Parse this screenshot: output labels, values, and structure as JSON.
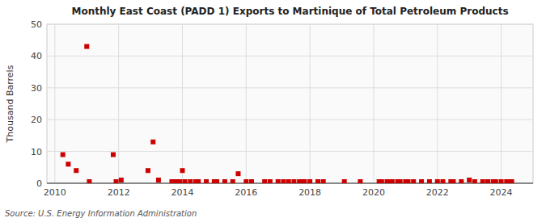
{
  "chart_data": {
    "type": "scatter",
    "title": "Monthly East Coast (PADD 1) Exports to Martinique of Total Petroleum Products",
    "ylabel": "Thousand Barrels",
    "annotations": [
      "Source: U.S. Energy Information Administration"
    ],
    "color": "#cc0000",
    "marker": "square",
    "grid": true,
    "xlim": [
      2009.75,
      2025.0
    ],
    "ylim": [
      0,
      50
    ],
    "xticks": [
      2010,
      2012,
      2014,
      2016,
      2018,
      2020,
      2022,
      2024
    ],
    "yticks": [
      0,
      10,
      20,
      30,
      40,
      50
    ],
    "x": [
      2010.25,
      2010.42,
      2010.67,
      2011.0,
      2011.08,
      2011.83,
      2011.92,
      2012.08,
      2012.92,
      2013.08,
      2013.25,
      2013.67,
      2013.75,
      2013.83,
      2013.92,
      2014.0,
      2014.08,
      2014.25,
      2014.42,
      2014.5,
      2014.75,
      2015.0,
      2015.08,
      2015.33,
      2015.58,
      2015.75,
      2016.0,
      2016.17,
      2016.58,
      2016.75,
      2017.0,
      2017.17,
      2017.33,
      2017.5,
      2017.67,
      2017.75,
      2017.83,
      2018.0,
      2018.25,
      2018.42,
      2019.08,
      2019.58,
      2020.17,
      2020.25,
      2020.42,
      2020.5,
      2020.58,
      2020.75,
      2020.83,
      2021.0,
      2021.08,
      2021.25,
      2021.5,
      2021.75,
      2022.0,
      2022.17,
      2022.42,
      2022.5,
      2022.75,
      2023.0,
      2023.17,
      2023.42,
      2023.58,
      2023.75,
      2023.83,
      2024.0,
      2024.17,
      2024.25,
      2024.33
    ],
    "values": [
      9.0,
      6.0,
      4.0,
      43.0,
      0.5,
      9.0,
      0.5,
      1.0,
      4.0,
      13.0,
      1.0,
      0.5,
      0.5,
      0.5,
      0.5,
      4.0,
      0.5,
      0.5,
      0.5,
      0.5,
      0.5,
      0.5,
      0.5,
      0.5,
      0.5,
      3.0,
      0.5,
      0.5,
      0.5,
      0.5,
      0.5,
      0.5,
      0.5,
      0.5,
      0.5,
      0.5,
      0.5,
      0.5,
      0.5,
      0.5,
      0.5,
      0.5,
      0.5,
      0.5,
      0.5,
      0.5,
      0.5,
      0.5,
      0.5,
      0.5,
      0.5,
      0.5,
      0.5,
      0.5,
      0.5,
      0.5,
      0.5,
      0.5,
      0.5,
      1.0,
      0.5,
      0.5,
      0.5,
      0.5,
      0.5,
      0.5,
      0.5,
      0.5,
      0.5
    ]
  }
}
